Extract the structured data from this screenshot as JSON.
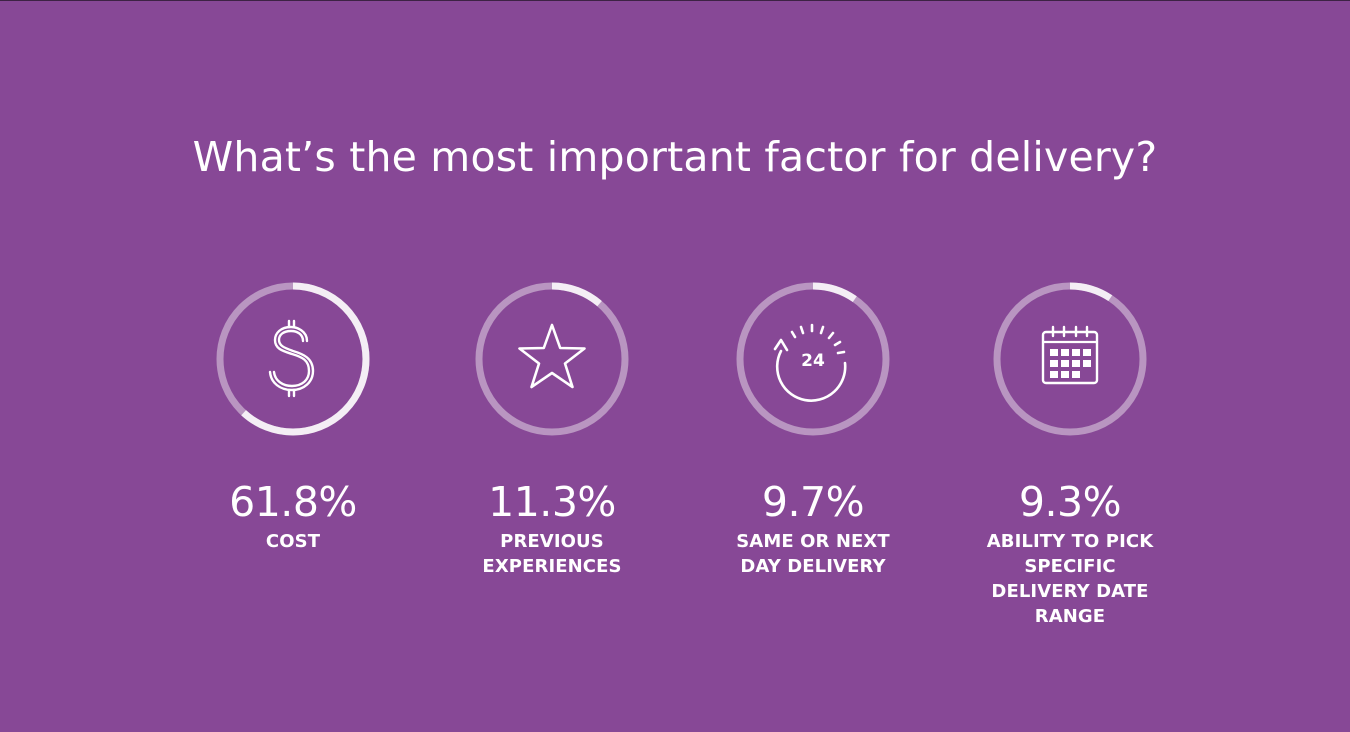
{
  "title": "What’s the most important factor for delivery?",
  "colors": {
    "background": "#874896",
    "ring_track": "#b995c1",
    "ring_fill": "#f4eef5",
    "text": "#ffffff"
  },
  "chart_data": {
    "type": "radial-progress",
    "title": "What’s the most important factor for delivery?",
    "unit": "%",
    "items": [
      {
        "label": "COST",
        "value": 61.8,
        "display": "61.8%",
        "icon": "dollar-sign-icon"
      },
      {
        "label": "PREVIOUS EXPERIENCES",
        "value": 11.3,
        "display": "11.3%",
        "icon": "star-icon"
      },
      {
        "label": "SAME OR NEXT DAY DELIVERY",
        "value": 9.7,
        "display": "9.7%",
        "icon": "clock-24-icon"
      },
      {
        "label": "ABILITY TO PICK SPECIFIC DELIVERY DATE RANGE",
        "value": 9.3,
        "display": "9.3%",
        "icon": "calendar-icon"
      }
    ]
  }
}
